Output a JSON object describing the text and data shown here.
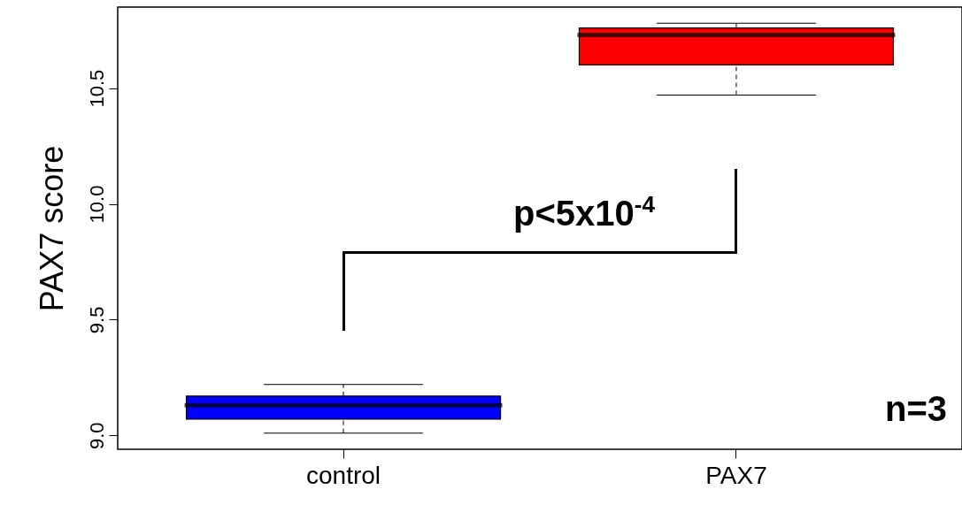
{
  "chart_data": {
    "type": "box",
    "ylabel": "PAX7 score",
    "categories": [
      "control",
      "PAX7"
    ],
    "series": [
      {
        "color": "#0000ff",
        "boxes": [
          {
            "low": 9.01,
            "q1": 9.07,
            "median": 9.13,
            "q3": 9.17,
            "high": 9.22
          },
          null
        ]
      },
      {
        "color": "#ff0000",
        "boxes": [
          null,
          {
            "low": 10.47,
            "q1": 10.6,
            "median": 10.73,
            "q3": 10.76,
            "high": 10.78
          }
        ]
      }
    ],
    "ylim": [
      8.94,
      10.85
    ],
    "yticks": [
      {
        "value": 9,
        "label": "9.0"
      },
      9.5,
      {
        "value": 10,
        "label": "10.0"
      },
      10.5
    ],
    "annotations": [
      "p<5x10$^{-4}$",
      "n=3"
    ]
  }
}
